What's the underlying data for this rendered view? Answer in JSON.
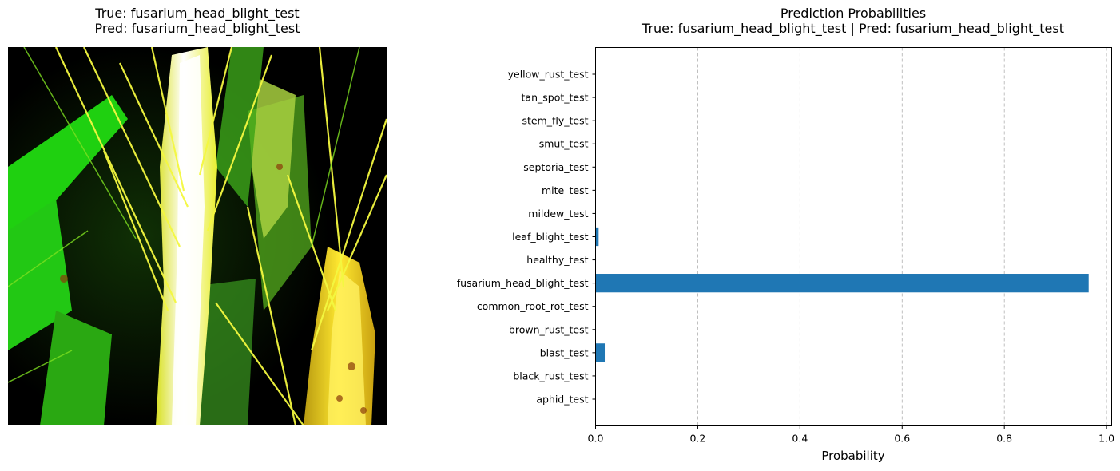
{
  "image_panel": {
    "title_line1": "True: fusarium_head_blight_test",
    "title_line2": "Pred: fusarium_head_blight_test"
  },
  "chart_data": {
    "type": "bar",
    "orientation": "horizontal",
    "title": "Prediction Probabilities",
    "subtitle": "True: fusarium_head_blight_test | Pred: fusarium_head_blight_test",
    "xlabel": "Probability",
    "ylabel": "",
    "xlim": [
      0,
      1.01
    ],
    "xticks": [
      0.0,
      0.2,
      0.4,
      0.6,
      0.8,
      1.0
    ],
    "xtick_labels": [
      "0.0",
      "0.2",
      "0.4",
      "0.6",
      "0.8",
      "1.0"
    ],
    "grid": "x-dashed",
    "bar_color": "#1f77b4",
    "categories": [
      "aphid_test",
      "black_rust_test",
      "blast_test",
      "brown_rust_test",
      "common_root_rot_test",
      "fusarium_head_blight_test",
      "healthy_test",
      "leaf_blight_test",
      "mildew_test",
      "mite_test",
      "septoria_test",
      "smut_test",
      "stem_fly_test",
      "tan_spot_test",
      "yellow_rust_test"
    ],
    "values": [
      0.0,
      0.0,
      0.018,
      0.0,
      0.0,
      0.965,
      0.0,
      0.006,
      0.0,
      0.0,
      0.0,
      0.0,
      0.0,
      0.0,
      0.0
    ]
  }
}
